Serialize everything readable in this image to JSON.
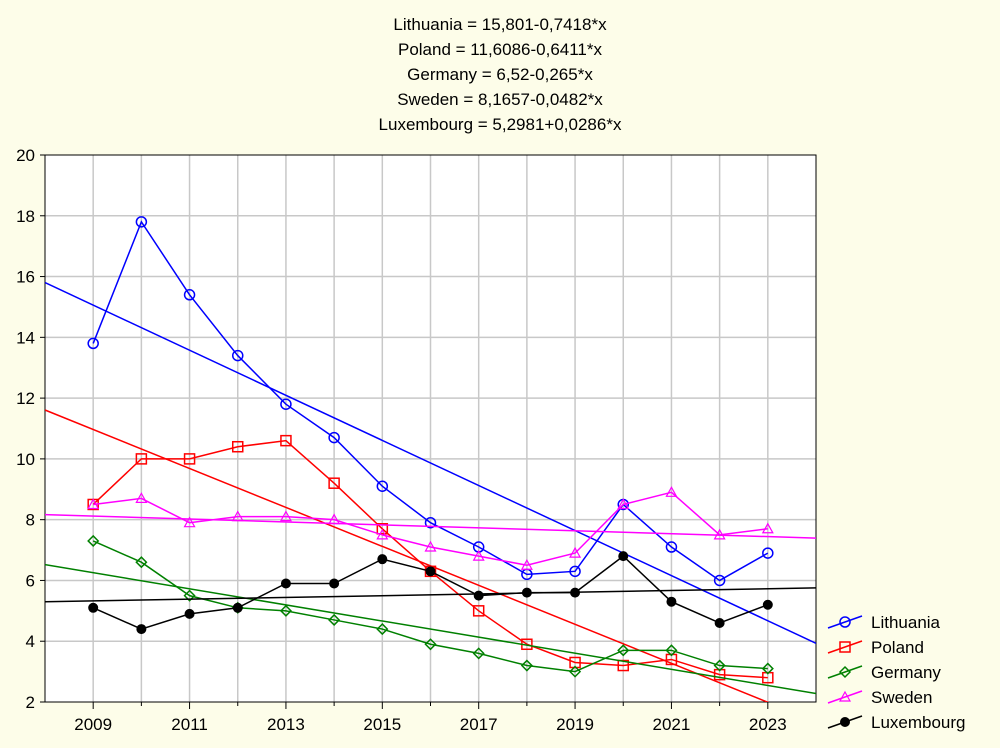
{
  "chart_data": {
    "type": "line",
    "title_lines": [
      "Lithuania = 15,801-0,7418*x",
      "Poland = 11,6086-0,6411*x",
      "Germany = 6,52-0,265*x",
      "Sweden = 8,1657-0,0482*x",
      "Luxembourg = 5,2981+0,0286*x"
    ],
    "x": [
      2009,
      2010,
      2011,
      2012,
      2013,
      2014,
      2015,
      2016,
      2017,
      2018,
      2019,
      2020,
      2021,
      2022,
      2023
    ],
    "x_ticks": [
      "2009",
      "2011",
      "2013",
      "2015",
      "2017",
      "2019",
      "2021",
      "2023"
    ],
    "y_ticks": [
      "2",
      "4",
      "6",
      "8",
      "10",
      "12",
      "14",
      "16",
      "18",
      "20"
    ],
    "xlim": [
      2008,
      2024
    ],
    "ylim": [
      2,
      20
    ],
    "grid": true,
    "legend_position": "bottom-right",
    "series": [
      {
        "name": "Lithuania",
        "color": "#0000ff",
        "marker": "circle",
        "values": [
          13.8,
          17.8,
          15.4,
          13.4,
          11.8,
          10.7,
          9.1,
          7.9,
          7.1,
          6.2,
          6.3,
          8.5,
          7.1,
          6.0,
          6.9
        ],
        "fit": {
          "intercept": 15.801,
          "slope": -0.7418
        }
      },
      {
        "name": "Poland",
        "color": "#ff0000",
        "marker": "square",
        "values": [
          8.5,
          10.0,
          10.0,
          10.4,
          10.6,
          9.2,
          7.7,
          6.3,
          5.0,
          3.9,
          3.3,
          3.2,
          3.4,
          2.9,
          2.8
        ],
        "fit": {
          "intercept": 11.6086,
          "slope": -0.6411
        }
      },
      {
        "name": "Germany",
        "color": "#008000",
        "marker": "diamond",
        "values": [
          7.3,
          6.6,
          5.5,
          5.1,
          5.0,
          4.7,
          4.4,
          3.9,
          3.6,
          3.2,
          3.0,
          3.7,
          3.7,
          3.2,
          3.1
        ],
        "fit": {
          "intercept": 6.52,
          "slope": -0.265
        }
      },
      {
        "name": "Sweden",
        "color": "#ff00ff",
        "marker": "triangle",
        "values": [
          8.5,
          8.7,
          7.9,
          8.1,
          8.1,
          8.0,
          7.5,
          7.1,
          6.8,
          6.5,
          6.9,
          8.5,
          8.9,
          7.5,
          7.7
        ],
        "fit": {
          "intercept": 8.1657,
          "slope": -0.0482
        }
      },
      {
        "name": "Luxembourg",
        "color": "#000000",
        "marker": "dot",
        "values": [
          5.1,
          4.4,
          4.9,
          5.1,
          5.9,
          5.9,
          6.7,
          6.3,
          5.5,
          5.6,
          5.6,
          6.8,
          5.3,
          4.6,
          5.2
        ],
        "fit": {
          "intercept": 5.2981,
          "slope": 0.0286
        }
      }
    ]
  }
}
